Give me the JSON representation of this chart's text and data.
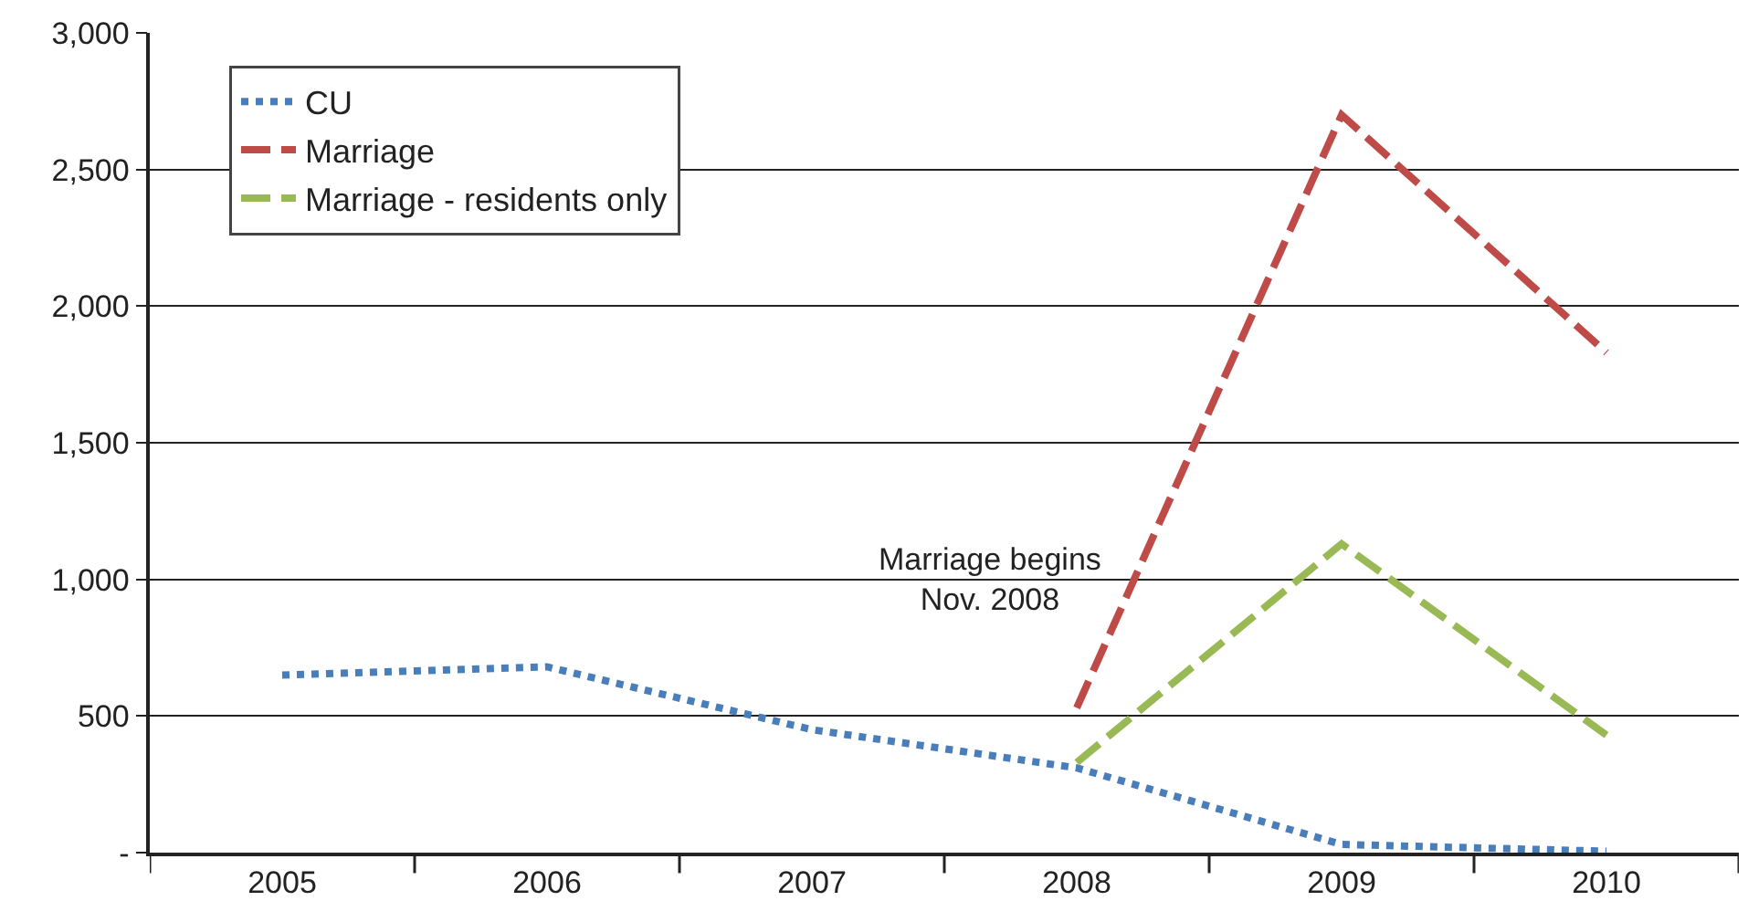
{
  "chart_data": {
    "type": "line",
    "categories": [
      "2005",
      "2006",
      "2007",
      "2008",
      "2009",
      "2010"
    ],
    "series": [
      {
        "name": "CU",
        "color": "#4a7ebb",
        "line_style": "dotted",
        "values": [
          650,
          680,
          450,
          310,
          30,
          5
        ]
      },
      {
        "name": "Marriage",
        "color": "#be4b48",
        "line_style": "dashed",
        "values": [
          null,
          null,
          null,
          530,
          2700,
          1830
        ]
      },
      {
        "name": "Marriage - residents only",
        "color": "#98b954",
        "line_style": "dashed",
        "values": [
          null,
          null,
          null,
          330,
          1130,
          430
        ]
      }
    ],
    "ylim": [
      0,
      3000
    ],
    "yticks": [
      {
        "value": 0,
        "label": "-"
      },
      {
        "value": 500,
        "label": "500"
      },
      {
        "value": 1000,
        "label": "1,000"
      },
      {
        "value": 1500,
        "label": "1,500"
      },
      {
        "value": 2000,
        "label": "2,000"
      },
      {
        "value": 2500,
        "label": "2,500"
      },
      {
        "value": 3000,
        "label": "3,000"
      }
    ],
    "grid": "y",
    "legend": "top left",
    "marker": "none",
    "annotations": [
      "Marriage begins\nNov. 2008"
    ]
  }
}
